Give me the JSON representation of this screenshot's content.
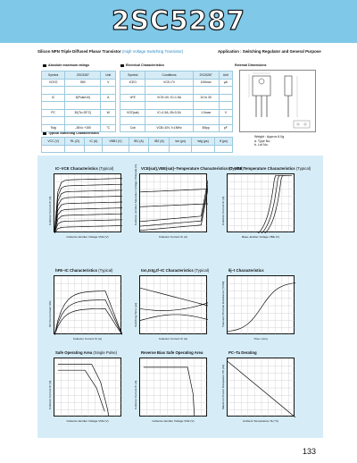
{
  "header": {
    "part_number": "2SC5287"
  },
  "subtitle": {
    "lead": "Silicon NPN Triple Diffused Planar Transistor",
    "tail": "(High Voltage Switching Transistor)",
    "application": "Application : Switching Regulator and General Purpose"
  },
  "sections": {
    "absolute_max": "Absolute maximum ratings",
    "electrical": "Electrical Characteristics",
    "typical_switching": "Typical Switching Characteristics",
    "external_dimensions": "External Dimensions"
  },
  "abs_max": {
    "headers": [
      "Symbol",
      "2SC5287",
      "Unit"
    ],
    "rows": [
      [
        "VCEO",
        "550",
        "V"
      ],
      [
        "",
        "",
        ""
      ],
      [
        "IC",
        "5(Pulse10)",
        "A"
      ],
      [
        "",
        "",
        ""
      ],
      [
        "PC",
        "30(Tc=25°C)",
        "W"
      ],
      [
        "",
        "",
        ""
      ],
      [
        "Tstg",
        "–55 to +150",
        "°C"
      ]
    ]
  },
  "electrical": {
    "headers": [
      "Symbol",
      "Conditions",
      "2SC5287",
      "Unit"
    ],
    "rows": [
      [
        "ICEO",
        "VCE=7V",
        "100max",
        "µA"
      ],
      [
        "",
        "",
        "",
        ""
      ],
      [
        "hFE",
        "VCE=4V, IC=1.5A",
        "10 to 30",
        ""
      ],
      [
        "",
        "",
        "",
        ""
      ],
      [
        "VCE(sat)",
        "IC=1.5A, IB=0.3A",
        "1.0max",
        "V"
      ],
      [
        "",
        "",
        "",
        ""
      ],
      [
        "Cob",
        "VCB=10V, f=1MHz",
        "50typ",
        "pF"
      ]
    ]
  },
  "switching": {
    "headers": [
      "VCC (V)",
      "RL (Ω)",
      "IC (A)",
      "VBB1 (V)",
      "IB1 (A)",
      "IB2 (A)",
      "ton (µs)",
      "tstg (µs)",
      "tf (µs)"
    ],
    "values": [
      "",
      "",
      "",
      "",
      "",
      "",
      "",
      "",
      ""
    ]
  },
  "package_notes": {
    "weight": "Weight : Approx 6.0g",
    "a": "a. Type No.",
    "b": "b. Lot No."
  },
  "charts": [
    {
      "id": "ic-vce",
      "title": "IC–VCE Characteristics",
      "qual": "(Typical)",
      "xlabel": "Collector–Emitter Voltage VCE (V)",
      "ylabel": "Collector Current IC (A)"
    },
    {
      "id": "vce-sat",
      "title": "VCE(sat),VBE(sat)–Temperature Characteristics",
      "qual": "(Typical)",
      "xlabel": "Collector Current IC (A)",
      "ylabel": "Collector–Emitter Saturation Voltage VCE(sat) (V)"
    },
    {
      "id": "ic-vbe",
      "title": "IC–VBE Temperature Characteristics",
      "qual": "(Typical)",
      "xlabel": "Base–Emitter Voltage VBE (V)",
      "ylabel": "Collector Current IC (A)"
    },
    {
      "id": "hfe-ic",
      "title": "hFE–IC Characteristics",
      "qual": "(Typical)",
      "xlabel": "Collector Current IC (A)",
      "ylabel": "DC Current Gain hFE"
    },
    {
      "id": "ton-ic",
      "title": "ton,tstg,tf–IC Characteristics",
      "qual": "(Typical)",
      "xlabel": "Collector Current IC (A)",
      "ylabel": "Switching Time (µs)"
    },
    {
      "id": "theta",
      "title": "θj–t Characteristics",
      "qual": "",
      "xlabel": "Time t (ms)",
      "ylabel": "Transient Thermal Resistance (°C/W)"
    },
    {
      "id": "soa",
      "title": "Safe Operating Area",
      "qual": "(Single Pulse)",
      "xlabel": "Collector–Emitter Voltage VCE (V)",
      "ylabel": "Collector Current IC (A)"
    },
    {
      "id": "rbsoa",
      "title": "Reverse Bias Safe Operating Area",
      "qual": "",
      "xlabel": "Collector–Emitter Voltage VCE (V)",
      "ylabel": "Collector Current IC (A)"
    },
    {
      "id": "pc-ta",
      "title": "PC–Ta Derating",
      "qual": "",
      "xlabel": "Ambient Temperature Ta (°C)",
      "ylabel": "Maximum Power Dissipation PC (W)"
    }
  ],
  "page": {
    "number": "133"
  }
}
